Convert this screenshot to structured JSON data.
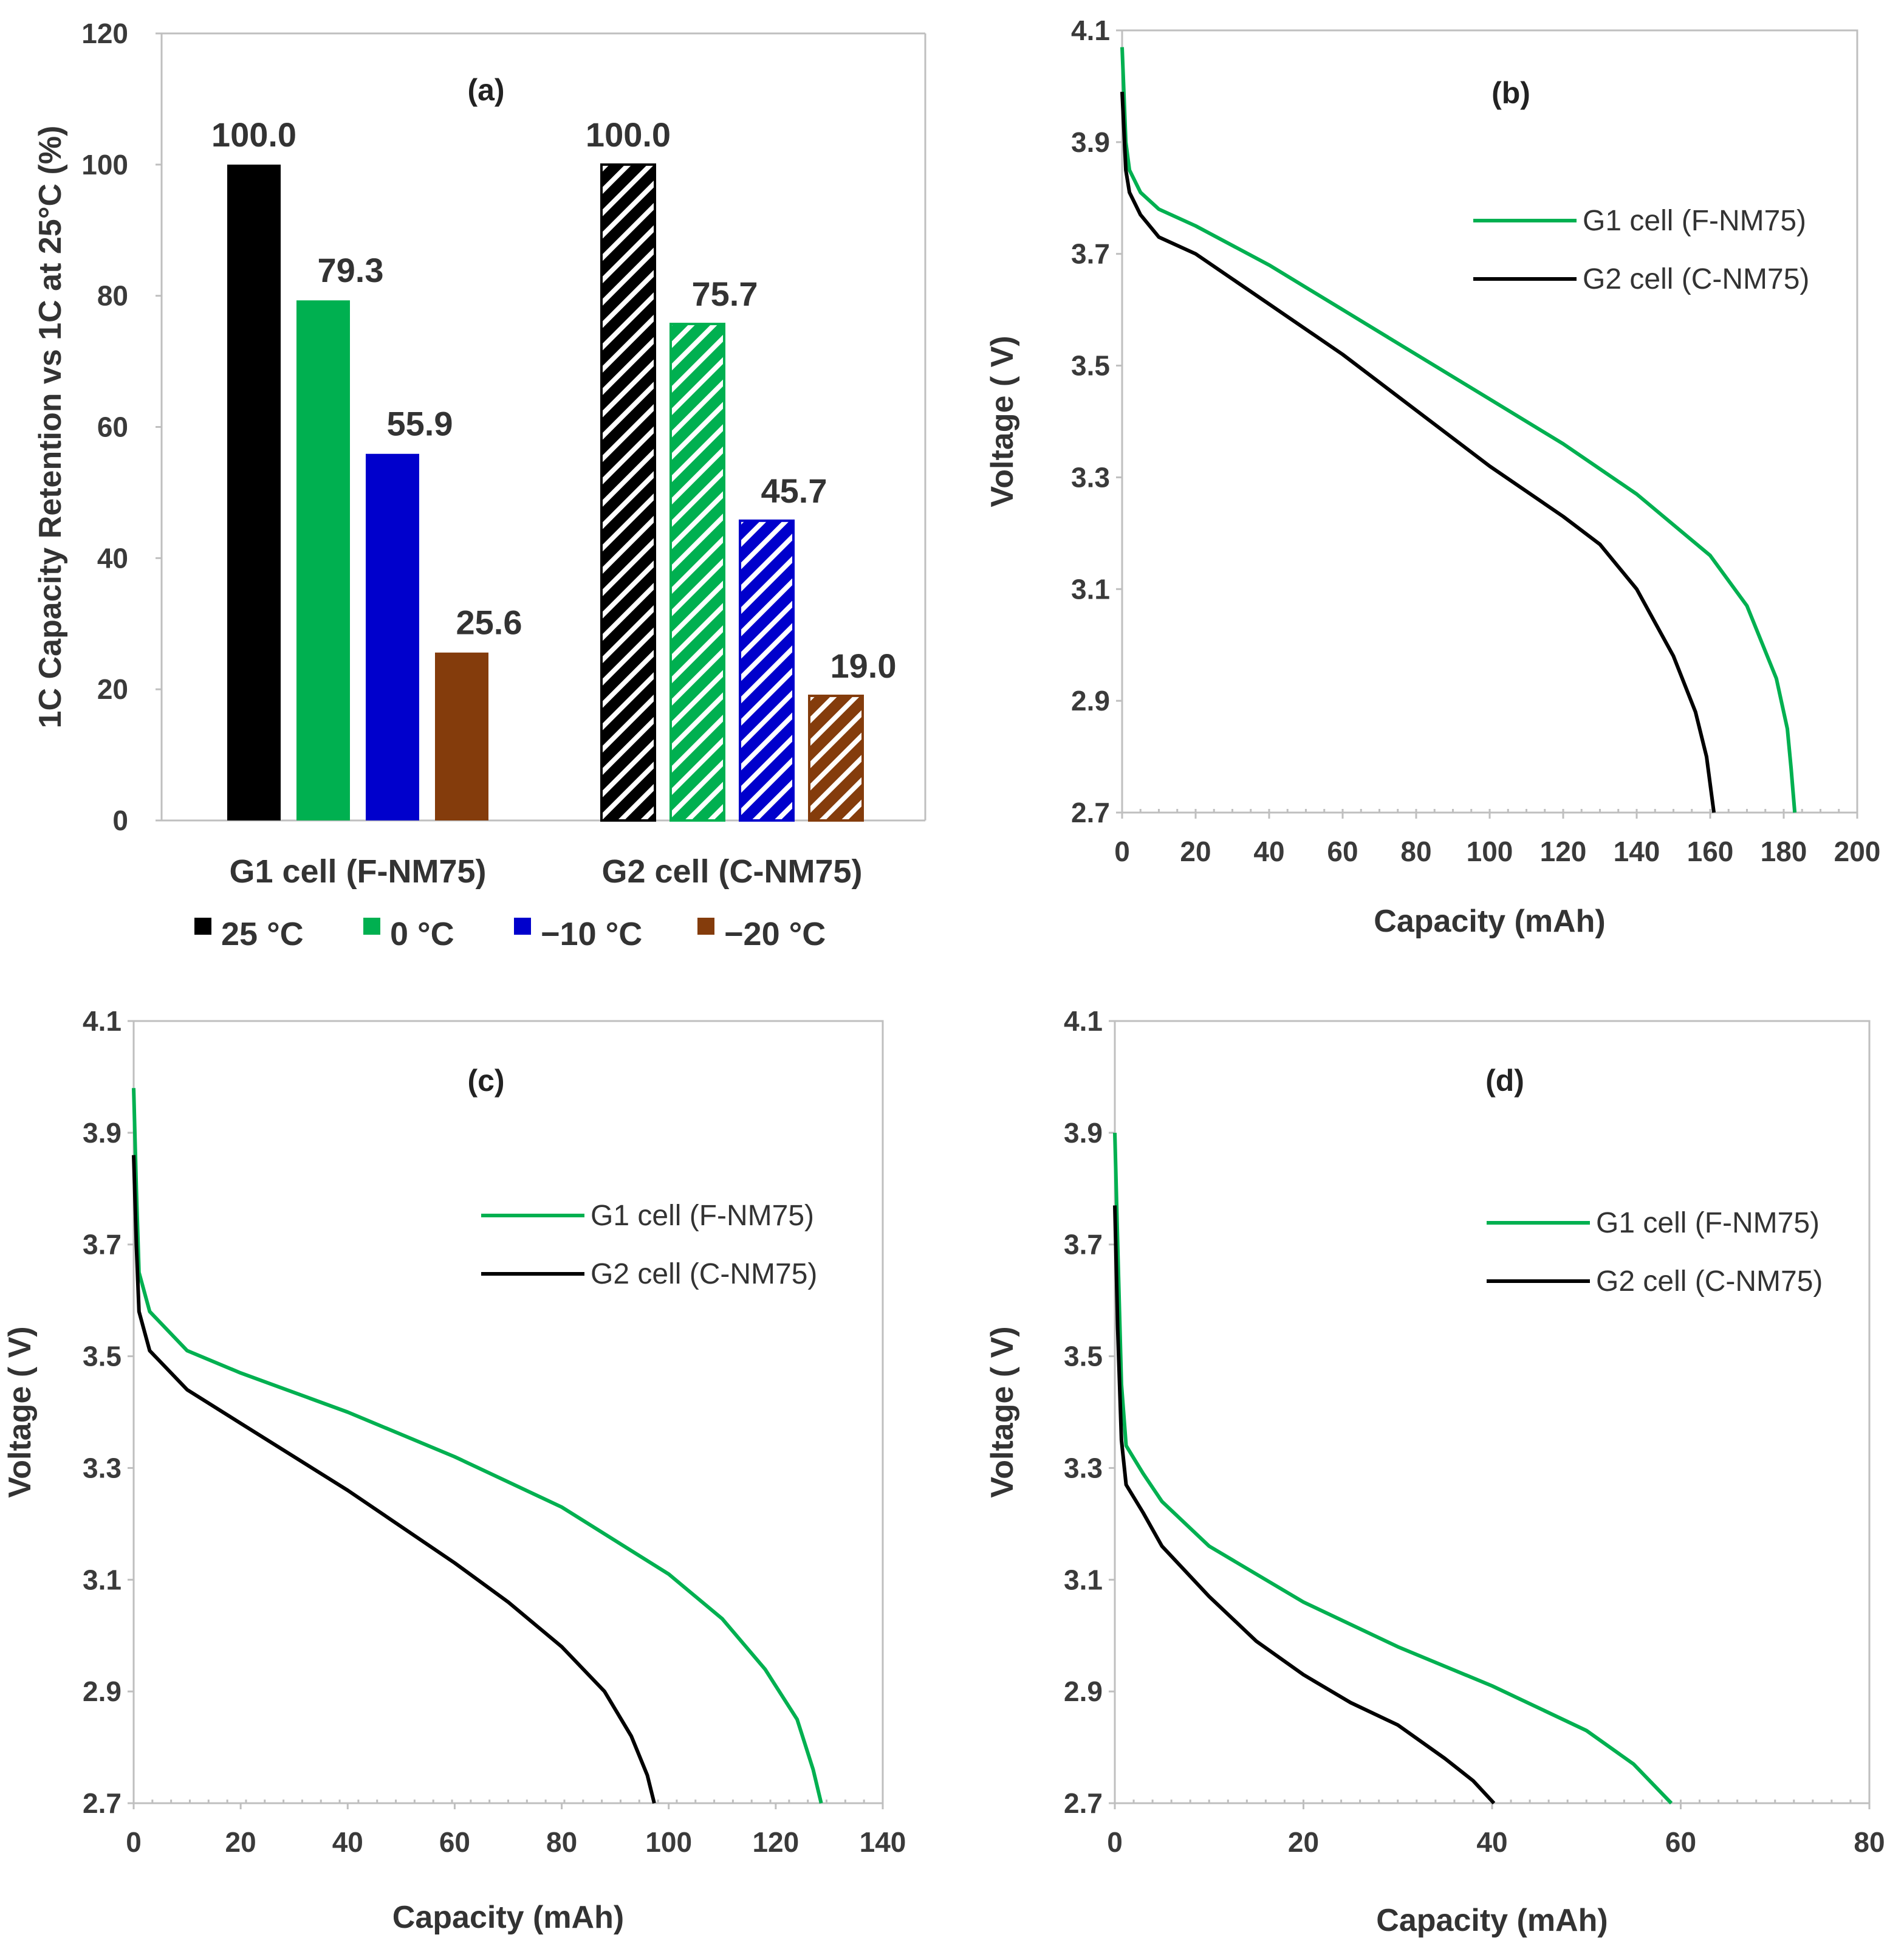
{
  "chart_data": [
    {
      "id": "a",
      "type": "bar",
      "panel_label": "(a)",
      "ylabel": "1C Capacity Retention vs 1C at 25°C  (%)",
      "xlabel": "",
      "ylim": [
        0,
        120
      ],
      "yticks": [
        0,
        20,
        40,
        60,
        80,
        100,
        120
      ],
      "categories": [
        "G1 cell (F-NM75)",
        "G2 cell (C-NM75)"
      ],
      "series": [
        {
          "name": "25 °C",
          "color": "#000000",
          "values": [
            100.0,
            100.0
          ],
          "labels": [
            "100.0",
            "100.0"
          ]
        },
        {
          "name": "0 °C",
          "color": "#00b050",
          "values": [
            79.3,
            75.7
          ],
          "labels": [
            "79.3",
            "75.7"
          ]
        },
        {
          "name": "−10 °C",
          "color": "#0000cc",
          "values": [
            55.9,
            45.7
          ],
          "labels": [
            "55.9",
            "45.7"
          ]
        },
        {
          "name": "−20 °C",
          "color": "#843c0c",
          "values": [
            25.6,
            19.0
          ],
          "labels": [
            "25.6",
            "19.0"
          ]
        }
      ],
      "hatched_category": "G2 cell (C-NM75)",
      "legend_position": "bottom"
    },
    {
      "id": "b",
      "type": "line",
      "panel_label": "(b)",
      "xlabel": "Capacity (mAh)",
      "ylabel": "Voltage ( V)",
      "xlim": [
        0,
        200
      ],
      "ylim": [
        2.7,
        4.1
      ],
      "xticks": [
        0,
        20,
        40,
        60,
        80,
        100,
        120,
        140,
        160,
        180,
        200
      ],
      "yticks": [
        "2.7",
        "2.9",
        "3.1",
        "3.3",
        "3.5",
        "3.7",
        "3.9",
        "4.1"
      ],
      "legend_position": "top-right",
      "series": [
        {
          "name": "G1 cell (F-NM75)",
          "color": "#00b050",
          "points": [
            [
              0,
              4.07
            ],
            [
              1,
              3.9
            ],
            [
              2,
              3.85
            ],
            [
              5,
              3.81
            ],
            [
              10,
              3.78
            ],
            [
              20,
              3.75
            ],
            [
              40,
              3.68
            ],
            [
              60,
              3.6
            ],
            [
              80,
              3.52
            ],
            [
              100,
              3.44
            ],
            [
              120,
              3.36
            ],
            [
              140,
              3.27
            ],
            [
              160,
              3.16
            ],
            [
              170,
              3.07
            ],
            [
              178,
              2.94
            ],
            [
              181,
              2.85
            ],
            [
              182,
              2.78
            ],
            [
              183,
              2.7
            ]
          ]
        },
        {
          "name": "G2 cell (C-NM75)",
          "color": "#000000",
          "points": [
            [
              0,
              3.99
            ],
            [
              1,
              3.85
            ],
            [
              2,
              3.81
            ],
            [
              5,
              3.77
            ],
            [
              10,
              3.73
            ],
            [
              20,
              3.7
            ],
            [
              40,
              3.61
            ],
            [
              60,
              3.52
            ],
            [
              80,
              3.42
            ],
            [
              100,
              3.32
            ],
            [
              120,
              3.23
            ],
            [
              130,
              3.18
            ],
            [
              140,
              3.1
            ],
            [
              150,
              2.98
            ],
            [
              156,
              2.88
            ],
            [
              159,
              2.8
            ],
            [
              161,
              2.7
            ]
          ]
        }
      ]
    },
    {
      "id": "c",
      "type": "line",
      "panel_label": "(c)",
      "xlabel": "Capacity (mAh)",
      "ylabel": "Voltage ( V)",
      "xlim": [
        0,
        140
      ],
      "ylim": [
        2.7,
        4.1
      ],
      "xticks": [
        0,
        20,
        40,
        60,
        80,
        100,
        120,
        140
      ],
      "yticks": [
        "2.7",
        "2.9",
        "3.1",
        "3.3",
        "3.5",
        "3.7",
        "3.9",
        "4.1"
      ],
      "legend_position": "top-right",
      "series": [
        {
          "name": "G1 cell (F-NM75)",
          "color": "#00b050",
          "points": [
            [
              0,
              3.98
            ],
            [
              0.5,
              3.8
            ],
            [
              1,
              3.65
            ],
            [
              3,
              3.58
            ],
            [
              10,
              3.51
            ],
            [
              20,
              3.47
            ],
            [
              40,
              3.4
            ],
            [
              60,
              3.32
            ],
            [
              80,
              3.23
            ],
            [
              100,
              3.11
            ],
            [
              110,
              3.03
            ],
            [
              118,
              2.94
            ],
            [
              124,
              2.85
            ],
            [
              127,
              2.76
            ],
            [
              128.5,
              2.7
            ]
          ]
        },
        {
          "name": "G2 cell (C-NM75)",
          "color": "#000000",
          "points": [
            [
              0,
              3.86
            ],
            [
              0.5,
              3.7
            ],
            [
              1,
              3.58
            ],
            [
              3,
              3.51
            ],
            [
              10,
              3.44
            ],
            [
              20,
              3.38
            ],
            [
              40,
              3.26
            ],
            [
              60,
              3.13
            ],
            [
              70,
              3.06
            ],
            [
              80,
              2.98
            ],
            [
              88,
              2.9
            ],
            [
              93,
              2.82
            ],
            [
              96,
              2.75
            ],
            [
              97.3,
              2.7
            ]
          ]
        }
      ]
    },
    {
      "id": "d",
      "type": "line",
      "panel_label": "(d)",
      "xlabel": "Capacity (mAh)",
      "ylabel": "Voltage ( V)",
      "xlim": [
        0,
        80
      ],
      "ylim": [
        2.7,
        4.1
      ],
      "xticks": [
        0,
        20,
        40,
        60,
        80
      ],
      "yticks": [
        "2.7",
        "2.9",
        "3.1",
        "3.3",
        "3.5",
        "3.7",
        "3.9",
        "4.1"
      ],
      "legend_position": "top-right",
      "series": [
        {
          "name": "G1 cell (F-NM75)",
          "color": "#00b050",
          "points": [
            [
              0,
              3.9
            ],
            [
              0.3,
              3.7
            ],
            [
              0.7,
              3.45
            ],
            [
              1.2,
              3.34
            ],
            [
              3,
              3.29
            ],
            [
              5,
              3.24
            ],
            [
              10,
              3.16
            ],
            [
              20,
              3.06
            ],
            [
              30,
              2.98
            ],
            [
              40,
              2.91
            ],
            [
              50,
              2.83
            ],
            [
              55,
              2.77
            ],
            [
              59,
              2.7
            ]
          ]
        },
        {
          "name": "G2 cell (C-NM75)",
          "color": "#000000",
          "points": [
            [
              0,
              3.77
            ],
            [
              0.3,
              3.55
            ],
            [
              0.7,
              3.35
            ],
            [
              1.2,
              3.27
            ],
            [
              3,
              3.22
            ],
            [
              5,
              3.16
            ],
            [
              10,
              3.07
            ],
            [
              15,
              2.99
            ],
            [
              20,
              2.93
            ],
            [
              25,
              2.88
            ],
            [
              30,
              2.84
            ],
            [
              35,
              2.78
            ],
            [
              38,
              2.74
            ],
            [
              40.2,
              2.7
            ]
          ]
        }
      ]
    }
  ]
}
